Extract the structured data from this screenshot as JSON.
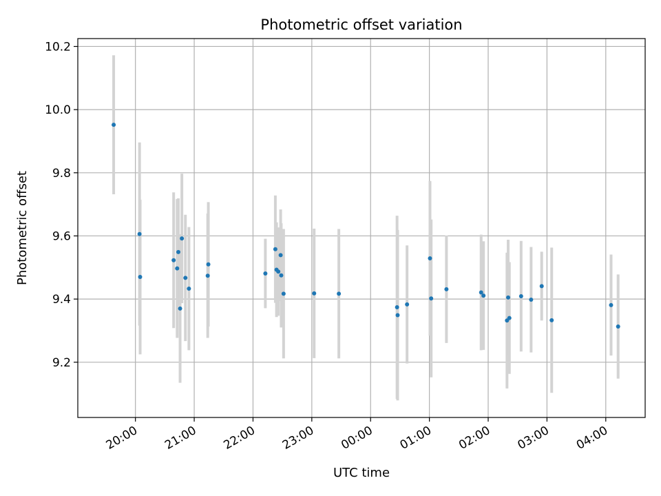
{
  "chart_data": {
    "type": "scatter",
    "title": "Photometric offset variation",
    "xlabel": "UTC time",
    "ylabel": "Photometric offset",
    "x_unit": "hours (UTC clock; values past 24 are after midnight)",
    "xlim": [
      19.02,
      28.67
    ],
    "ylim": [
      9.025,
      10.225
    ],
    "xticks": [
      {
        "value": 20,
        "label": "20:00"
      },
      {
        "value": 21,
        "label": "21:00"
      },
      {
        "value": 22,
        "label": "22:00"
      },
      {
        "value": 23,
        "label": "23:00"
      },
      {
        "value": 24,
        "label": "00:00"
      },
      {
        "value": 25,
        "label": "01:00"
      },
      {
        "value": 26,
        "label": "02:00"
      },
      {
        "value": 27,
        "label": "03:00"
      },
      {
        "value": 28,
        "label": "04:00"
      }
    ],
    "yticks": [
      {
        "value": 9.2,
        "label": "9.2"
      },
      {
        "value": 9.4,
        "label": "9.4"
      },
      {
        "value": 9.6,
        "label": "9.6"
      },
      {
        "value": 9.8,
        "label": "9.8"
      },
      {
        "value": 10.0,
        "label": "10.0"
      },
      {
        "value": 10.2,
        "label": "10.2"
      }
    ],
    "grid": true,
    "marker_color": "#1f77b4",
    "errorbar_color": "#d3d3d3",
    "points": [
      {
        "x": 19.63,
        "y": 9.952,
        "err": 0.22
      },
      {
        "x": 20.07,
        "y": 9.606,
        "err": 0.29
      },
      {
        "x": 20.08,
        "y": 9.47,
        "err": 0.245
      },
      {
        "x": 20.65,
        "y": 9.523,
        "err": 0.215
      },
      {
        "x": 20.71,
        "y": 9.497,
        "err": 0.22
      },
      {
        "x": 20.73,
        "y": 9.549,
        "err": 0.17
      },
      {
        "x": 20.76,
        "y": 9.37,
        "err": 0.235
      },
      {
        "x": 20.79,
        "y": 9.592,
        "err": 0.205
      },
      {
        "x": 20.85,
        "y": 9.467,
        "err": 0.2
      },
      {
        "x": 20.91,
        "y": 9.433,
        "err": 0.195
      },
      {
        "x": 21.23,
        "y": 9.474,
        "err": 0.197
      },
      {
        "x": 21.24,
        "y": 9.51,
        "err": 0.197
      },
      {
        "x": 22.21,
        "y": 9.481,
        "err": 0.11
      },
      {
        "x": 22.38,
        "y": 9.558,
        "err": 0.17
      },
      {
        "x": 22.4,
        "y": 9.493,
        "err": 0.15
      },
      {
        "x": 22.43,
        "y": 9.487,
        "err": 0.14
      },
      {
        "x": 22.47,
        "y": 9.539,
        "err": 0.145
      },
      {
        "x": 22.48,
        "y": 9.475,
        "err": 0.165
      },
      {
        "x": 22.52,
        "y": 9.417,
        "err": 0.205
      },
      {
        "x": 23.04,
        "y": 9.418,
        "err": 0.205
      },
      {
        "x": 23.46,
        "y": 9.417,
        "err": 0.205
      },
      {
        "x": 24.45,
        "y": 9.374,
        "err": 0.29
      },
      {
        "x": 24.46,
        "y": 9.349,
        "err": 0.27
      },
      {
        "x": 24.62,
        "y": 9.383,
        "err": 0.187
      },
      {
        "x": 25.01,
        "y": 9.529,
        "err": 0.245
      },
      {
        "x": 25.03,
        "y": 9.402,
        "err": 0.25
      },
      {
        "x": 25.29,
        "y": 9.431,
        "err": 0.17
      },
      {
        "x": 25.88,
        "y": 9.421,
        "err": 0.183
      },
      {
        "x": 25.92,
        "y": 9.411,
        "err": 0.172
      },
      {
        "x": 26.32,
        "y": 9.332,
        "err": 0.215
      },
      {
        "x": 26.34,
        "y": 9.405,
        "err": 0.183
      },
      {
        "x": 26.36,
        "y": 9.34,
        "err": 0.177
      },
      {
        "x": 26.56,
        "y": 9.409,
        "err": 0.175
      },
      {
        "x": 26.73,
        "y": 9.398,
        "err": 0.167
      },
      {
        "x": 26.91,
        "y": 9.441,
        "err": 0.109
      },
      {
        "x": 27.08,
        "y": 9.333,
        "err": 0.23
      },
      {
        "x": 28.09,
        "y": 9.381,
        "err": 0.16
      },
      {
        "x": 28.21,
        "y": 9.313,
        "err": 0.165
      }
    ]
  }
}
